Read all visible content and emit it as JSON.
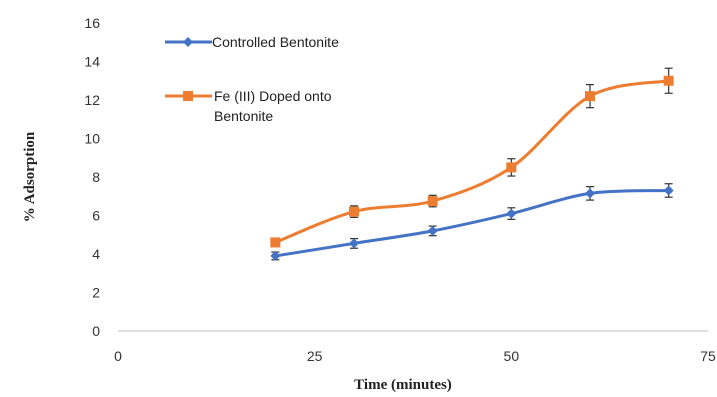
{
  "chart_data": {
    "type": "line",
    "title": "",
    "xlabel": "Time (minutes)",
    "ylabel": "% Adsorption",
    "xlim": [
      0,
      75
    ],
    "ylim": [
      0,
      16
    ],
    "xticks": [
      0,
      25,
      50,
      75
    ],
    "yticks": [
      0,
      2,
      4,
      6,
      8,
      10,
      12,
      14,
      16
    ],
    "xtick_labels": [
      "0",
      "25",
      "50",
      "75"
    ],
    "ytick_labels": [
      "0",
      "2",
      "4",
      "6",
      "8",
      "10",
      "12",
      "14",
      "16"
    ],
    "grid": false,
    "legend_position": "top-left",
    "error_bars": true,
    "x": [
      20,
      30,
      40,
      50,
      60,
      70
    ],
    "series": [
      {
        "name": "Controlled Bentonite",
        "color": "#4472C4",
        "marker": "diamond",
        "values": [
          3.9,
          4.55,
          5.2,
          6.1,
          7.15,
          7.3
        ],
        "errors": [
          0.2,
          0.25,
          0.25,
          0.3,
          0.35,
          0.35
        ]
      },
      {
        "name": "Fe (III) Doped onto Bentonite",
        "name_lines": [
          "Fe (III) Doped onto",
          "Bentonite"
        ],
        "color": "#ED7D31",
        "marker": "square",
        "values": [
          4.6,
          6.2,
          6.75,
          8.5,
          12.2,
          13.0
        ],
        "errors": [
          0.2,
          0.3,
          0.3,
          0.45,
          0.6,
          0.65
        ]
      }
    ]
  }
}
